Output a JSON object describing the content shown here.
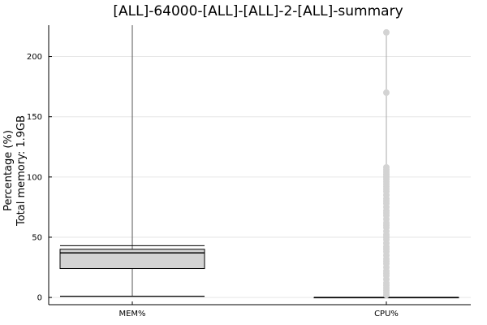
{
  "chart_data": {
    "type": "box",
    "title": "[ALL]-64000-[ALL]-[ALL]-2-[ALL]-summary",
    "ylabel": "Percentage (%)",
    "ylabel2": "Total memory: 1.9GB",
    "xlabel": "",
    "ylim": [
      -6,
      226
    ],
    "yticks": [
      0,
      50,
      100,
      150,
      200
    ],
    "grid": true,
    "categories": [
      "MEM%",
      "CPU%"
    ],
    "boxes": [
      {
        "name": "MEM%",
        "whisker_low": 1,
        "q1": 24,
        "median": 37,
        "q3": 40,
        "whisker_high": 43,
        "line_max": 226,
        "outliers": []
      },
      {
        "name": "CPU%",
        "whisker_low": 0,
        "q1": 0,
        "median": 0,
        "q3": 0,
        "whisker_high": 0,
        "line_max": 220,
        "outliers": [
          220,
          170,
          108,
          106,
          104,
          102,
          100,
          98,
          96,
          94,
          92,
          90,
          88,
          85,
          82,
          80,
          78,
          75,
          72,
          70,
          68,
          65,
          62,
          60,
          58,
          55,
          52,
          50,
          48,
          45,
          42,
          40,
          38,
          35,
          32,
          30,
          28,
          25,
          22,
          20,
          18,
          15,
          12,
          10,
          8,
          6,
          4,
          2
        ]
      }
    ]
  },
  "colors": {
    "box_fill": "#d3d3d3",
    "outlier": "#d3d3d3",
    "line": "#000000",
    "grid": "#e6e6e6"
  }
}
